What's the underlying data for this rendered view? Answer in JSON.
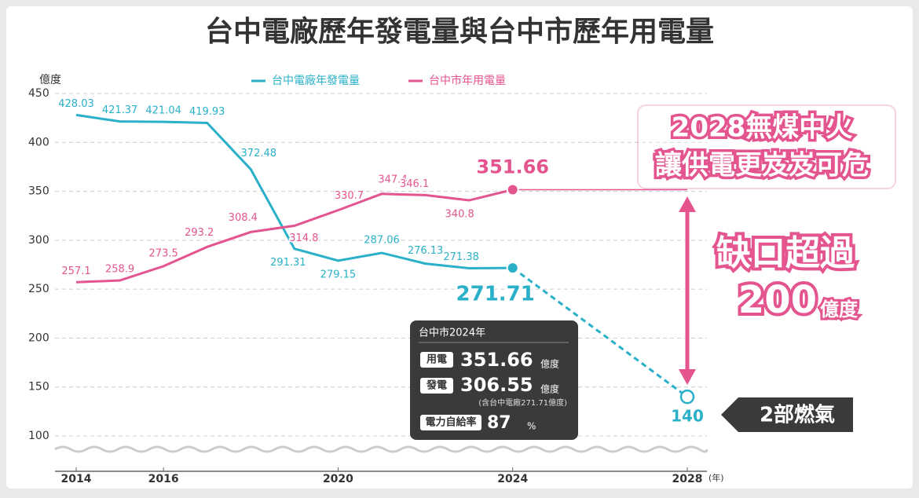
{
  "chart_data": {
    "type": "line",
    "title": "台中電廠歷年發電量與台中市歷年用電量",
    "ylabel": "億度",
    "xlabel": "(年)",
    "x": [
      2014,
      2015,
      2016,
      2017,
      2018,
      2019,
      2020,
      2021,
      2022,
      2023,
      2024,
      2028
    ],
    "series": [
      {
        "name": "台中電廠年發電量",
        "color": "#2ab0c9",
        "values": [
          428.03,
          421.37,
          421.04,
          419.93,
          372.48,
          291.31,
          279.15,
          287.06,
          276.13,
          271.38,
          271.71,
          140
        ]
      },
      {
        "name": "台中市年用電量",
        "color": "#e4548f",
        "values": [
          257.1,
          258.9,
          273.5,
          293.2,
          308.4,
          314.8,
          330.7,
          347.4,
          346.1,
          340.8,
          351.66,
          null
        ]
      }
    ],
    "dash_from_x": 2024,
    "xlim": [
      2013.5,
      2028.5
    ],
    "xticks": [
      2014,
      2016,
      2020,
      2024,
      2028
    ],
    "ylim": [
      70,
      450
    ],
    "yticks": [
      100,
      150,
      200,
      250,
      300,
      350,
      400,
      450
    ],
    "grid": true,
    "annotations": {
      "headline": [
        "2028無煤中火",
        "讓供電更岌岌可危"
      ],
      "gap": "缺口超過",
      "gap_value": "200",
      "gap_unit": "億度",
      "gas": "2部燃氣"
    },
    "info_box": {
      "title": "台中市2024年",
      "use_label": "用電",
      "use_value": 351.66,
      "use_unit": "億度",
      "gen_label": "發電",
      "gen_value": 306.55,
      "gen_unit": "億度",
      "gen_note": "(含台中電廠271.71億度)",
      "rate_label": "電力自給率",
      "rate_value": 87,
      "rate_unit": "%"
    }
  }
}
